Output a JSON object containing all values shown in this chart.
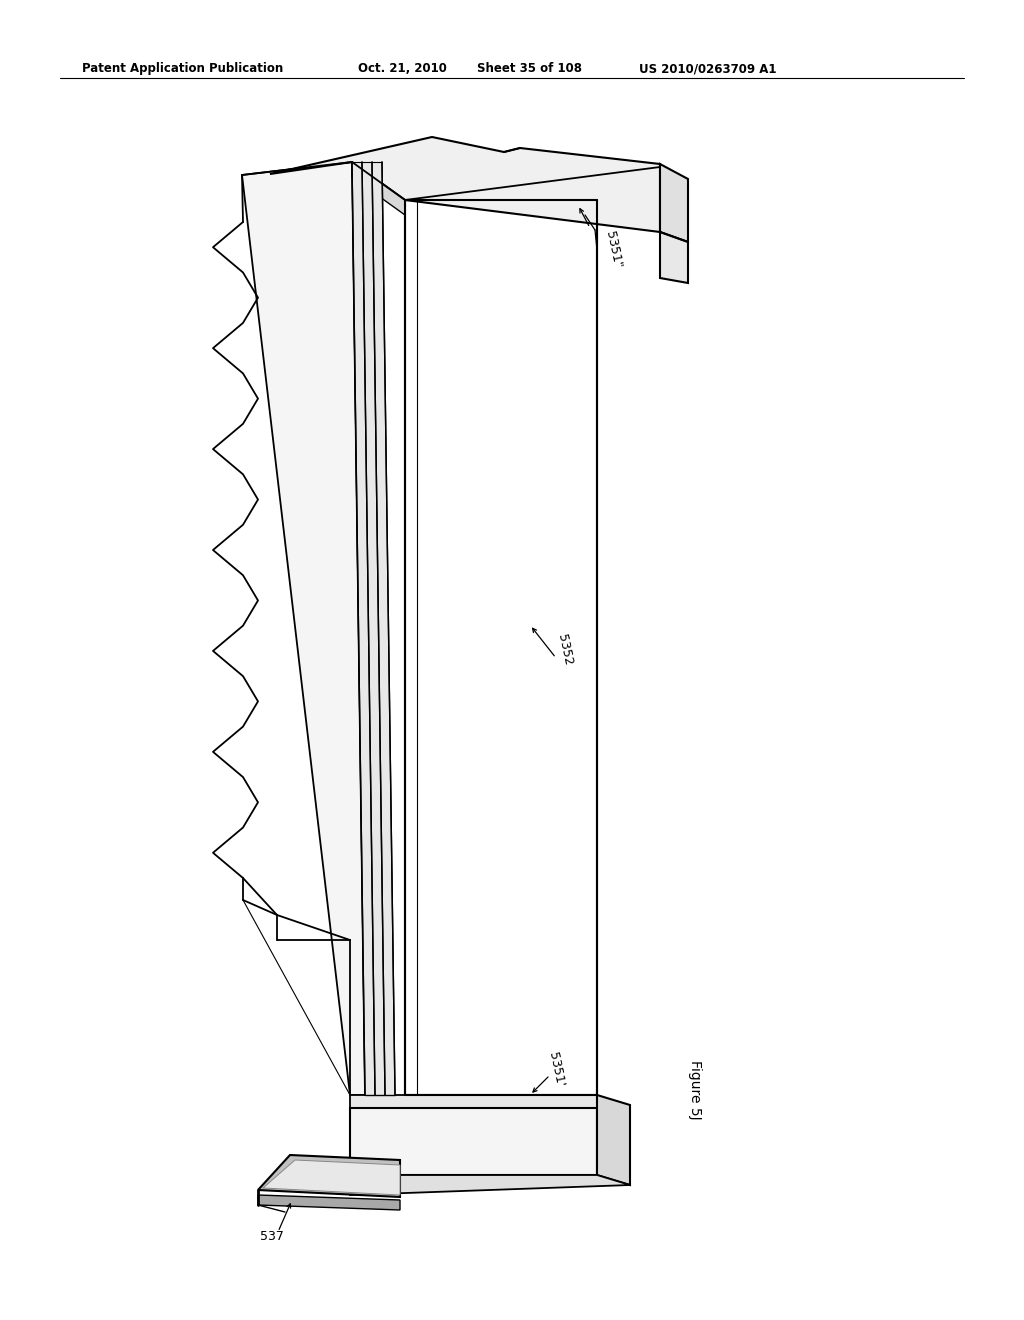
{
  "bg_color": "#ffffff",
  "line_color": "#000000",
  "header_left": "Patent Application Publication",
  "header_date": "Oct. 21, 2010",
  "header_sheet": "Sheet 35 of 108",
  "header_patent": "US 2010/0263709 A1",
  "figure_label": "Figure 5J",
  "label_5351_top": "5351\"",
  "label_5352": "5352",
  "label_5351_bot": "5351'",
  "label_537": "537"
}
